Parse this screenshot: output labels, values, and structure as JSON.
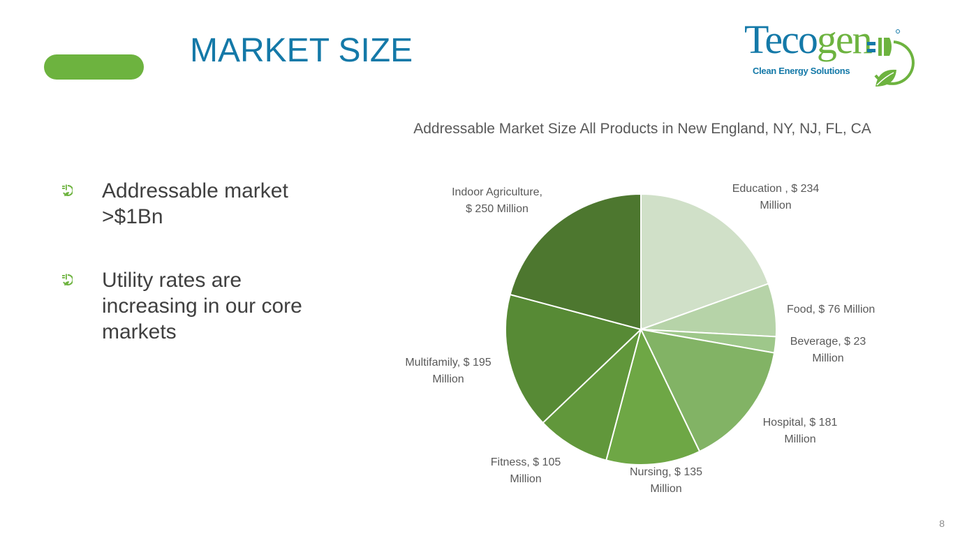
{
  "slide": {
    "title": "MARKET SIZE",
    "page_number": "8",
    "accent_color": "#6db33f",
    "title_color": "#1479a8"
  },
  "logo": {
    "word_part1": "Teco",
    "word_part2": "gen",
    "tagline": "Clean Energy Solutions",
    "icon": "plug-leaf-icon"
  },
  "bullets": [
    {
      "text": "Addressable market >$1Bn",
      "icon": "plug-leaf-bullet-icon"
    },
    {
      "text": "Utility rates are increasing in our core markets",
      "icon": "plug-leaf-bullet-icon"
    }
  ],
  "chart_data": {
    "type": "pie",
    "title": "Addressable Market Size All Products in New England, NY, NJ, FL, CA",
    "start_angle": "12 o'clock",
    "direction": "clockwise",
    "slices": [
      {
        "category": "Education",
        "value": 234,
        "label_line1": "Education , $ 234",
        "label_line2": "Million",
        "color": "#d0e0c8"
      },
      {
        "category": "Food",
        "value": 76,
        "label_line1": "Food, $ 76 Million",
        "label_line2": "",
        "color": "#b6d3a8"
      },
      {
        "category": "Beverage",
        "value": 23,
        "label_line1": "Beverage, $ 23",
        "label_line2": "Million",
        "color": "#9ec78a"
      },
      {
        "category": "Hospital",
        "value": 181,
        "label_line1": "Hospital, $ 181",
        "label_line2": "Million",
        "color": "#82b365"
      },
      {
        "category": "Nursing",
        "value": 135,
        "label_line1": "Nursing, $ 135",
        "label_line2": "Million",
        "color": "#6ea745"
      },
      {
        "category": "Fitness",
        "value": 105,
        "label_line1": "Fitness, $ 105",
        "label_line2": "Million",
        "color": "#61973b"
      },
      {
        "category": "Multifamily",
        "value": 195,
        "label_line1": "Multifamily, $ 195",
        "label_line2": "Million",
        "color": "#578a35"
      },
      {
        "category": "Indoor Agriculture",
        "value": 250,
        "label_line1": "Indoor Agriculture,",
        "label_line2": "$ 250 Million",
        "color": "#4d772f"
      }
    ]
  }
}
